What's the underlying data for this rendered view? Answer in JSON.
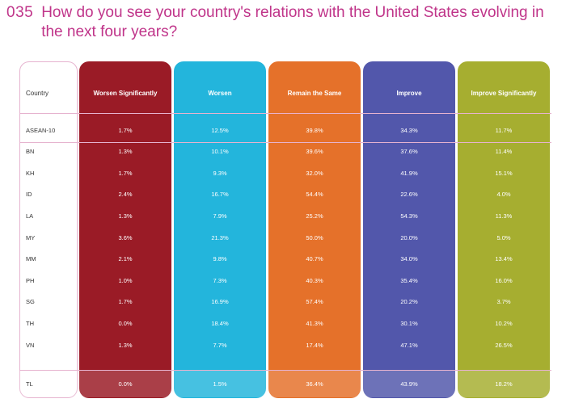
{
  "question_number": "035",
  "question_text": "How do you see your country's relations with the United States evolving in the next four years?",
  "colors": {
    "title": "#c0358a",
    "worsen_significantly": "#9a1b26",
    "worsen": "#23b5dc",
    "remain_the_same": "#e5712a",
    "improve": "#5257ab",
    "improve_significantly": "#a6ae30"
  },
  "chart_data": {
    "type": "table",
    "title": "How do you see your country's relations with the United States evolving in the next four years?",
    "row_header": "Country",
    "columns": [
      "Worsen Significantly",
      "Worsen",
      "Remain the Same",
      "Improve",
      "Improve Significantly"
    ],
    "rows": [
      {
        "country": "ASEAN-10",
        "values": [
          "1.7%",
          "12.5%",
          "39.8%",
          "34.3%",
          "11.7%"
        ]
      },
      {
        "country": "BN",
        "values": [
          "1.3%",
          "10.1%",
          "39.6%",
          "37.6%",
          "11.4%"
        ]
      },
      {
        "country": "KH",
        "values": [
          "1.7%",
          "9.3%",
          "32.0%",
          "41.9%",
          "15.1%"
        ]
      },
      {
        "country": "ID",
        "values": [
          "2.4%",
          "16.7%",
          "54.4%",
          "22.6%",
          "4.0%"
        ]
      },
      {
        "country": "LA",
        "values": [
          "1.3%",
          "7.9%",
          "25.2%",
          "54.3%",
          "11.3%"
        ]
      },
      {
        "country": "MY",
        "values": [
          "3.6%",
          "21.3%",
          "50.0%",
          "20.0%",
          "5.0%"
        ]
      },
      {
        "country": "MM",
        "values": [
          "2.1%",
          "9.8%",
          "40.7%",
          "34.0%",
          "13.4%"
        ]
      },
      {
        "country": "PH",
        "values": [
          "1.0%",
          "7.3%",
          "40.3%",
          "35.4%",
          "16.0%"
        ]
      },
      {
        "country": "SG",
        "values": [
          "1.7%",
          "16.9%",
          "57.4%",
          "20.2%",
          "3.7%"
        ]
      },
      {
        "country": "TH",
        "values": [
          "0.0%",
          "18.4%",
          "41.3%",
          "30.1%",
          "10.2%"
        ]
      },
      {
        "country": "VN",
        "values": [
          "1.3%",
          "7.7%",
          "17.4%",
          "47.1%",
          "26.5%"
        ]
      },
      {
        "country": "TL",
        "values": [
          "0.0%",
          "1.5%",
          "36.4%",
          "43.9%",
          "18.2%"
        ]
      }
    ]
  }
}
